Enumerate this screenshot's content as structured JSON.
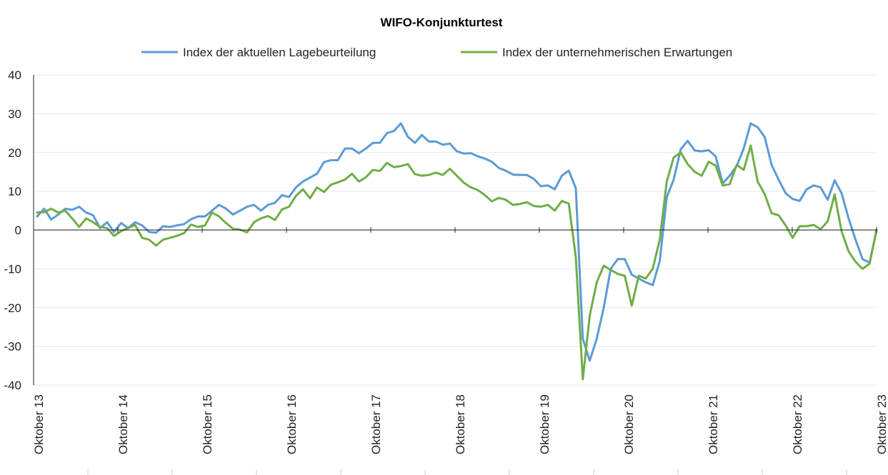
{
  "chart_data": {
    "type": "line",
    "title": "WIFO-Konjunkturtest",
    "xlabel": "",
    "ylabel": "",
    "ylim": [
      -40,
      40
    ],
    "yticks": [
      40,
      30,
      20,
      10,
      0,
      -10,
      -20,
      -30,
      -40
    ],
    "xtick_labels": [
      "Oktober 13",
      "Oktober 14",
      "Oktober 15",
      "Oktober 16",
      "Oktober 17",
      "Oktober 18",
      "Oktober 19",
      "Oktober 20",
      "Oktober 21",
      "Oktober 22",
      "Oktober 23"
    ],
    "x_start": "2013-10",
    "x_end": "2023-10",
    "legend_position": "top",
    "grid": true,
    "series": [
      {
        "name": "Index der aktuellen Lagebeurteilung",
        "color": "#5b9bd5",
        "values": [
          3.5,
          5.5,
          2.7,
          4,
          5.5,
          5.2,
          6,
          4.5,
          3.8,
          0.5,
          2,
          -0.5,
          1.8,
          0.5,
          2,
          1.2,
          -0.5,
          -0.7,
          1,
          0.8,
          1.2,
          1.5,
          2.8,
          3.5,
          3.5,
          5,
          6.5,
          5.5,
          4,
          5,
          6,
          6.5,
          5,
          6.5,
          7,
          9,
          8.5,
          11,
          12.5,
          13.5,
          14.5,
          17.5,
          18,
          18,
          21,
          21,
          19.8,
          21,
          22.5,
          22.5,
          25,
          25.5,
          27.5,
          24,
          22.5,
          24.5,
          22.8,
          22.8,
          22,
          22.3,
          20.3,
          19.7,
          19.8,
          19,
          18.4,
          17.6,
          16,
          15.3,
          14.3,
          14.2,
          14.2,
          13.2,
          11.3,
          11.5,
          10.5,
          14,
          15.3,
          10.8,
          -28,
          -33.7,
          -28,
          -20,
          -10,
          -7.5,
          -7.5,
          -11.5,
          -12.5,
          -13.5,
          -14.2,
          -8,
          8.5,
          13,
          20.8,
          23,
          20.5,
          20.3,
          20.6,
          19,
          12,
          14,
          16.5,
          21,
          27.5,
          26.5,
          24,
          16.8,
          13,
          9.5,
          8,
          7.5,
          10.5,
          11.5,
          11,
          7.8,
          12.8,
          9.5,
          3,
          -2.5,
          -7.5,
          -8.4,
          0
        ]
      },
      {
        "name": "Index der unternehmerischen Erwartungen",
        "color": "#70ad47",
        "values": [
          4.5,
          4.6,
          5.5,
          4.5,
          5,
          3,
          0.8,
          3,
          2,
          0.8,
          0.5,
          -1.5,
          -0.3,
          0.5,
          1.3,
          -2,
          -2.5,
          -4,
          -2.5,
          -2,
          -1.5,
          -0.8,
          1.4,
          0.8,
          1.2,
          4.5,
          3.5,
          1.8,
          0.3,
          0.1,
          -0.6,
          2,
          3,
          3.6,
          2.6,
          5.3,
          6,
          8.8,
          10.5,
          8.2,
          11,
          9.8,
          11.7,
          12.3,
          13,
          14.5,
          12.5,
          13.6,
          15.5,
          15.2,
          17.3,
          16.2,
          16.5,
          17,
          14.4,
          14,
          14.2,
          14.8,
          14.2,
          15.8,
          14,
          12.2,
          11,
          10.3,
          9,
          7.4,
          8.3,
          7.8,
          6.5,
          6.7,
          7.2,
          6.2,
          6,
          6.5,
          5,
          7.5,
          6.8,
          -7,
          -38.5,
          -22,
          -13.5,
          -9.2,
          -10.3,
          -11.3,
          -11.8,
          -19.5,
          -11.8,
          -12.5,
          -10,
          -2.5,
          12.5,
          18.7,
          20,
          17,
          15,
          14,
          17.6,
          16.6,
          11.5,
          11.8,
          16.8,
          15.5,
          21.8,
          12.5,
          9.3,
          4.3,
          3.8,
          1.2,
          -2,
          1,
          1,
          1.3,
          0.2,
          2.2,
          9.2,
          -0.3,
          -5.5,
          -8.2,
          -10,
          -8.7,
          0
        ]
      }
    ]
  }
}
